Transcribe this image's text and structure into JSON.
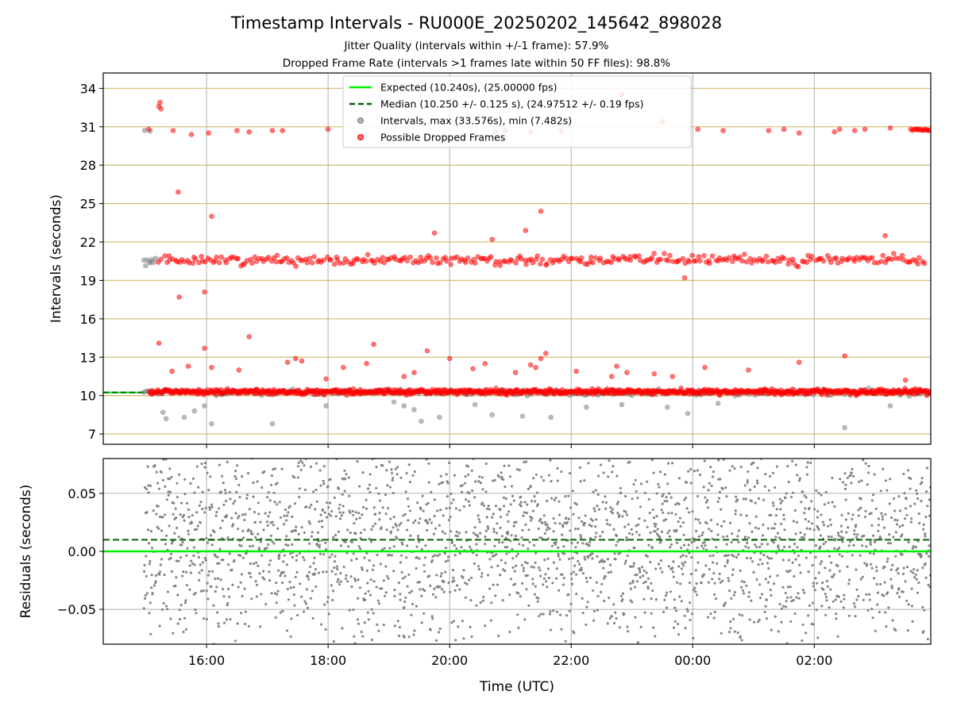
{
  "figure": {
    "title": "Timestamp Intervals - RU000E_20250202_145642_898028",
    "subtitle_1": "Jitter Quality (intervals within +/-1 frame): 57.9%",
    "subtitle_2": "Dropped Frame Rate (intervals >1 frames late within 50 FF files): 98.8%"
  },
  "colors": {
    "expected": "#00ee00",
    "median": "#006400",
    "intervals": "#808080",
    "dropped": "#ff0000",
    "hgrid_top": "#d4c27a",
    "grid": "#b0b0b0"
  },
  "chart_data": [
    {
      "type": "scatter",
      "xlabel": "",
      "ylabel": "Intervals (seconds)",
      "x_domain": [
        "14:18",
        "03:55"
      ],
      "ylim": [
        6.2,
        35.2
      ],
      "yticks": [
        "7",
        "10",
        "13",
        "16",
        "19",
        "22",
        "25",
        "28",
        "31",
        "34"
      ],
      "xticks": [
        "16:00",
        "18:00",
        "20:00",
        "22:00",
        "00:00",
        "02:00"
      ],
      "grid": true,
      "legend_position": "upper-center",
      "legend": [
        {
          "label": "Expected (10.240s), (25.00000 fps)",
          "style": "solid-line",
          "color": "#00ee00"
        },
        {
          "label": "Median (10.250 +/- 0.125 s), (24.97512 +/- 0.19 fps)",
          "style": "dashed-line",
          "color": "#006400"
        },
        {
          "label": "Intervals, max (33.576s), min (7.482s)",
          "style": "marker",
          "color": "#808080"
        },
        {
          "label": "Possible Dropped Frames",
          "style": "marker",
          "color": "#ff0000"
        }
      ],
      "expected_value": 10.24,
      "median_value": 10.25,
      "series": [
        {
          "name": "Intervals, max (33.576s), min (7.482s)",
          "bands": [
            {
              "center": 10.25,
              "spread": 0.12,
              "x_from": "14:58",
              "x_to": "03:55",
              "density": 350
            },
            {
              "center": 20.55,
              "spread": 0.15,
              "x_from": "14:58",
              "x_to": "15:10",
              "density": 8
            },
            {
              "center": 30.75,
              "spread": 0.05,
              "x_from": "14:58",
              "x_to": "15:05",
              "density": 2
            }
          ],
          "points": [
            {
              "x": "15:17",
              "y": 8.7
            },
            {
              "x": "15:20",
              "y": 8.2
            },
            {
              "x": "15:38",
              "y": 8.3
            },
            {
              "x": "15:48",
              "y": 8.8
            },
            {
              "x": "15:58",
              "y": 9.2
            },
            {
              "x": "16:05",
              "y": 7.8
            },
            {
              "x": "17:05",
              "y": 7.8
            },
            {
              "x": "17:58",
              "y": 9.2
            },
            {
              "x": "19:05",
              "y": 9.5
            },
            {
              "x": "19:15",
              "y": 9.2
            },
            {
              "x": "19:25",
              "y": 8.9
            },
            {
              "x": "19:32",
              "y": 8.0
            },
            {
              "x": "19:50",
              "y": 8.3
            },
            {
              "x": "20:25",
              "y": 9.3
            },
            {
              "x": "20:42",
              "y": 8.5
            },
            {
              "x": "21:12",
              "y": 8.4
            },
            {
              "x": "21:40",
              "y": 8.3
            },
            {
              "x": "22:15",
              "y": 9.1
            },
            {
              "x": "22:50",
              "y": 9.3
            },
            {
              "x": "23:35",
              "y": 9.1
            },
            {
              "x": "23:55",
              "y": 8.6
            },
            {
              "x": "00:25",
              "y": 9.4
            },
            {
              "x": "02:30",
              "y": 7.5
            },
            {
              "x": "03:15",
              "y": 9.2
            }
          ]
        },
        {
          "name": "Possible Dropped Frames",
          "bands": [
            {
              "center": 10.3,
              "spread": 0.1,
              "x_from": "15:03",
              "x_to": "03:55",
              "density": 900
            },
            {
              "center": 20.6,
              "spread": 0.18,
              "x_from": "15:12",
              "x_to": "03:50",
              "density": 330
            },
            {
              "center": 30.75,
              "spread": 0.04,
              "x_from": "03:35",
              "x_to": "03:55",
              "density": 15
            }
          ],
          "points": [
            {
              "x": "15:03",
              "y": 30.8
            },
            {
              "x": "15:13",
              "y": 32.6
            },
            {
              "x": "15:14",
              "y": 32.9
            },
            {
              "x": "15:15",
              "y": 32.4
            },
            {
              "x": "15:27",
              "y": 30.7
            },
            {
              "x": "15:45",
              "y": 30.4
            },
            {
              "x": "16:02",
              "y": 30.5
            },
            {
              "x": "16:30",
              "y": 30.7
            },
            {
              "x": "16:42",
              "y": 30.6
            },
            {
              "x": "17:05",
              "y": 30.7
            },
            {
              "x": "17:15",
              "y": 30.7
            },
            {
              "x": "18:00",
              "y": 30.8
            },
            {
              "x": "20:45",
              "y": 30.6
            },
            {
              "x": "20:55",
              "y": 30.7
            },
            {
              "x": "21:20",
              "y": 30.6
            },
            {
              "x": "21:50",
              "y": 30.7
            },
            {
              "x": "22:50",
              "y": 33.5
            },
            {
              "x": "23:30",
              "y": 31.4
            },
            {
              "x": "00:05",
              "y": 30.8
            },
            {
              "x": "00:30",
              "y": 30.7
            },
            {
              "x": "01:15",
              "y": 30.7
            },
            {
              "x": "01:30",
              "y": 30.8
            },
            {
              "x": "01:45",
              "y": 30.5
            },
            {
              "x": "02:20",
              "y": 30.6
            },
            {
              "x": "02:25",
              "y": 30.8
            },
            {
              "x": "02:40",
              "y": 30.7
            },
            {
              "x": "02:50",
              "y": 30.8
            },
            {
              "x": "03:15",
              "y": 30.9
            },
            {
              "x": "15:32",
              "y": 25.9
            },
            {
              "x": "16:05",
              "y": 24.0
            },
            {
              "x": "19:45",
              "y": 22.7
            },
            {
              "x": "20:42",
              "y": 22.2
            },
            {
              "x": "21:15",
              "y": 22.9
            },
            {
              "x": "21:30",
              "y": 24.4
            },
            {
              "x": "03:10",
              "y": 22.5
            },
            {
              "x": "15:33",
              "y": 17.7
            },
            {
              "x": "15:58",
              "y": 18.1
            },
            {
              "x": "23:52",
              "y": 19.2
            },
            {
              "x": "15:13",
              "y": 14.1
            },
            {
              "x": "16:42",
              "y": 14.6
            },
            {
              "x": "18:45",
              "y": 14.0
            },
            {
              "x": "15:58",
              "y": 13.7
            },
            {
              "x": "17:58",
              "y": 11.3
            },
            {
              "x": "18:15",
              "y": 12.2
            },
            {
              "x": "18:38",
              "y": 12.5
            },
            {
              "x": "19:38",
              "y": 13.5
            },
            {
              "x": "20:00",
              "y": 12.9
            },
            {
              "x": "21:35",
              "y": 13.3
            },
            {
              "x": "21:30",
              "y": 12.9
            },
            {
              "x": "21:20",
              "y": 12.4
            },
            {
              "x": "21:25",
              "y": 12.2
            },
            {
              "x": "22:40",
              "y": 11.5
            },
            {
              "x": "22:45",
              "y": 12.3
            },
            {
              "x": "00:12",
              "y": 12.2
            },
            {
              "x": "00:55",
              "y": 12.0
            },
            {
              "x": "02:30",
              "y": 13.1
            },
            {
              "x": "01:45",
              "y": 12.6
            },
            {
              "x": "15:42",
              "y": 12.3
            },
            {
              "x": "15:26",
              "y": 11.9
            },
            {
              "x": "16:05",
              "y": 12.2
            },
            {
              "x": "16:32",
              "y": 12.0
            },
            {
              "x": "17:20",
              "y": 12.6
            },
            {
              "x": "17:28",
              "y": 12.9
            },
            {
              "x": "17:34",
              "y": 12.7
            },
            {
              "x": "19:15",
              "y": 11.5
            },
            {
              "x": "19:25",
              "y": 11.8
            },
            {
              "x": "20:23",
              "y": 12.1
            },
            {
              "x": "20:35",
              "y": 12.5
            },
            {
              "x": "21:05",
              "y": 11.8
            },
            {
              "x": "22:05",
              "y": 11.9
            },
            {
              "x": "22:55",
              "y": 11.8
            },
            {
              "x": "23:22",
              "y": 11.7
            },
            {
              "x": "23:40",
              "y": 11.5
            },
            {
              "x": "03:30",
              "y": 11.2
            }
          ]
        }
      ]
    },
    {
      "type": "scatter",
      "xlabel": "Time (UTC)",
      "ylabel": "Residuals (seconds)",
      "x_domain": [
        "14:18",
        "03:55"
      ],
      "ylim": [
        -0.08,
        0.08
      ],
      "yticks": [
        "0.05",
        "0.00",
        "−0.05"
      ],
      "xticks": [
        "16:00",
        "18:00",
        "20:00",
        "22:00",
        "00:00",
        "02:00"
      ],
      "grid": true,
      "expected_value": 0.0,
      "median_value": 0.01,
      "series": [
        {
          "name": "Residuals",
          "bands": [
            {
              "center": 0.01,
              "spread": 0.045,
              "x_from": "14:58",
              "x_to": "03:55",
              "density": 2600
            }
          ]
        }
      ]
    }
  ]
}
